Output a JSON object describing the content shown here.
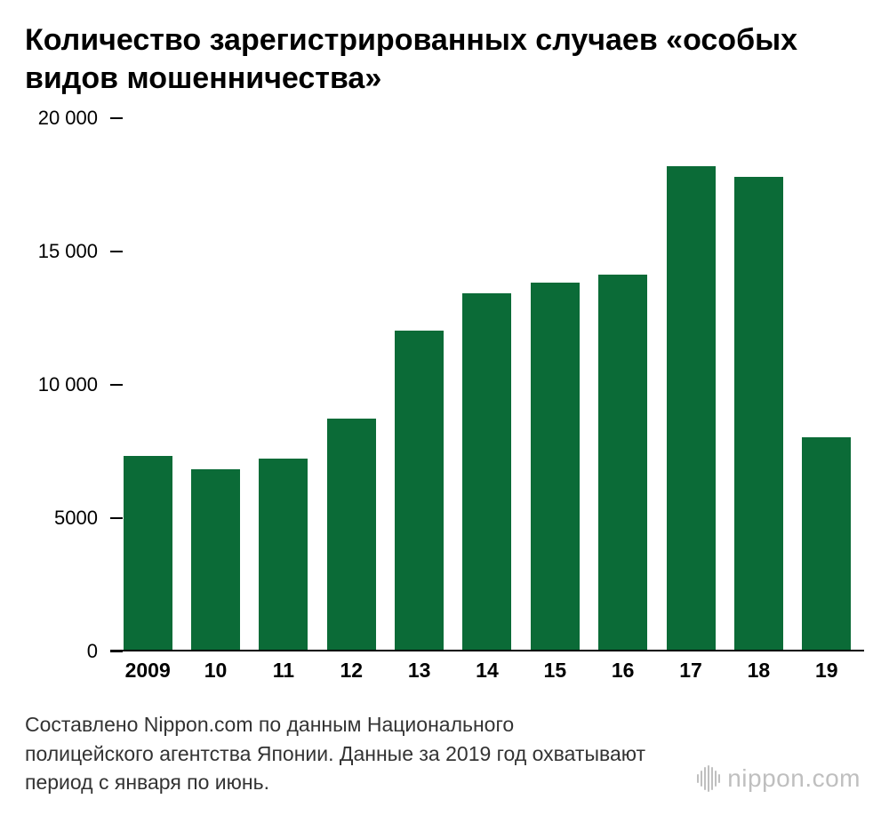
{
  "title": "Количество зарегистрированных случаев «особых видов мошенничества»",
  "chart": {
    "type": "bar",
    "categories": [
      "2009",
      "10",
      "11",
      "12",
      "13",
      "14",
      "15",
      "16",
      "17",
      "18",
      "19"
    ],
    "values": [
      7300,
      6800,
      7200,
      8700,
      12000,
      13400,
      13800,
      14100,
      18200,
      17800,
      8000
    ],
    "bar_color": "#0b6b37",
    "background_color": "#ffffff",
    "axis_color": "#000000",
    "ylim": [
      0,
      20000
    ],
    "yticks": [
      0,
      5000,
      10000,
      15000,
      20000
    ],
    "ytick_labels": [
      "0",
      "5000",
      "10 000",
      "15 000",
      "20 000"
    ],
    "ytick_line_width": 14,
    "bar_width_ratio": 0.72,
    "title_fontsize": 34,
    "label_fontsize": 22,
    "xlabel_fontsize": 23,
    "xlabel_fontweight": 700
  },
  "caption": "Составлено Nippon.com по данным Национального полицейского агентства Японии. Данные за 2019 год охватывают период с января по июнь.",
  "logo": {
    "text": "nippon",
    "suffix": ".com",
    "color": "#bfbfbf"
  }
}
